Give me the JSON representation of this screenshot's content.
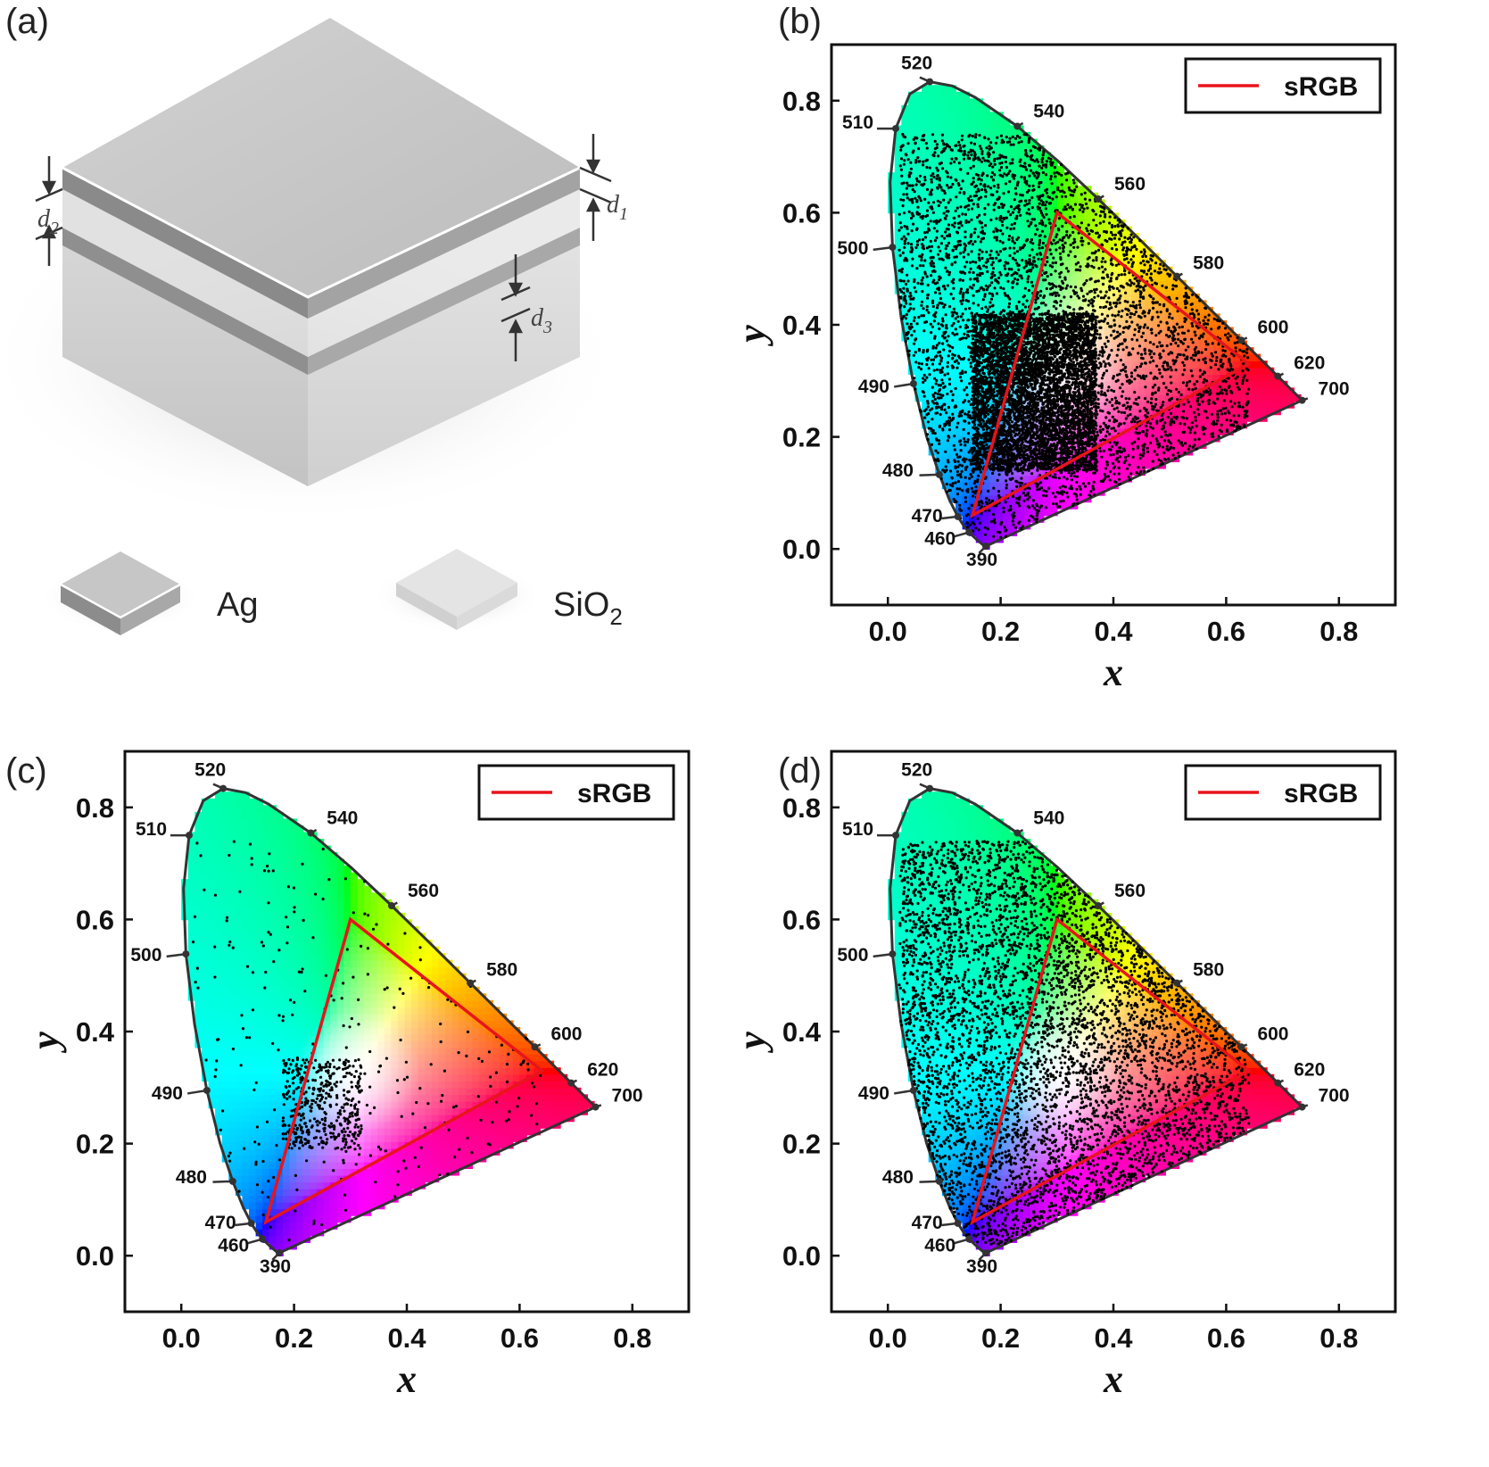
{
  "panels": {
    "a": {
      "label": "(a)"
    },
    "b": {
      "label": "(b)"
    },
    "c": {
      "label": "(c)"
    },
    "d": {
      "label": "(d)"
    }
  },
  "schematic": {
    "d1": "d",
    "d1_sub": "1",
    "d2": "d",
    "d2_sub": "2",
    "d3": "d",
    "d3_sub": "3",
    "legend_ag": "Ag",
    "legend_sio2": "SiO",
    "legend_sio2_sub": "2",
    "colors": {
      "ag_top": "#c8c8c8",
      "ag_edge": "#9a9a9a",
      "sio2_top": "#e6e6e6",
      "sio2_side": "#d9d9d9"
    }
  },
  "chart_data": [
    {
      "panel": "b",
      "type": "scatter",
      "xlabel": "x",
      "ylabel": "y",
      "xlim": [
        -0.1,
        0.9
      ],
      "ylim": [
        -0.1,
        0.9
      ],
      "xticks": [
        "0.0",
        "0.2",
        "0.4",
        "0.6",
        "0.8"
      ],
      "yticks": [
        "0.0",
        "0.2",
        "0.4",
        "0.6",
        "0.8"
      ],
      "legend": {
        "label": "sRGB",
        "color": "#e8141c",
        "position": "top-right"
      },
      "density": "very-high",
      "wavelength_labels": [
        "390",
        "460",
        "470",
        "480",
        "490",
        "500",
        "510",
        "520",
        "540",
        "560",
        "580",
        "600",
        "620",
        "700"
      ],
      "srgb_triangle": [
        [
          0.64,
          0.33
        ],
        [
          0.3,
          0.6
        ],
        [
          0.15,
          0.06
        ]
      ]
    },
    {
      "panel": "c",
      "type": "scatter",
      "xlabel": "x",
      "ylabel": "y",
      "xlim": [
        -0.1,
        0.9
      ],
      "ylim": [
        -0.1,
        0.9
      ],
      "xticks": [
        "0.0",
        "0.2",
        "0.4",
        "0.6",
        "0.8"
      ],
      "yticks": [
        "0.0",
        "0.2",
        "0.4",
        "0.6",
        "0.8"
      ],
      "legend": {
        "label": "sRGB",
        "color": "#e8141c",
        "position": "top-right"
      },
      "density": "low",
      "wavelength_labels": [
        "390",
        "460",
        "470",
        "480",
        "490",
        "500",
        "510",
        "520",
        "540",
        "560",
        "580",
        "600",
        "620",
        "700"
      ],
      "srgb_triangle": [
        [
          0.64,
          0.33
        ],
        [
          0.3,
          0.6
        ],
        [
          0.15,
          0.06
        ]
      ]
    },
    {
      "panel": "d",
      "type": "scatter",
      "xlabel": "x",
      "ylabel": "y",
      "xlim": [
        -0.1,
        0.9
      ],
      "ylim": [
        -0.1,
        0.9
      ],
      "xticks": [
        "0.0",
        "0.2",
        "0.4",
        "0.6",
        "0.8"
      ],
      "yticks": [
        "0.0",
        "0.2",
        "0.4",
        "0.6",
        "0.8"
      ],
      "legend": {
        "label": "sRGB",
        "color": "#e8141c",
        "position": "top-right"
      },
      "density": "medium",
      "wavelength_labels": [
        "390",
        "460",
        "470",
        "480",
        "490",
        "500",
        "510",
        "520",
        "540",
        "560",
        "580",
        "600",
        "620",
        "700"
      ],
      "srgb_triangle": [
        [
          0.64,
          0.33
        ],
        [
          0.3,
          0.6
        ],
        [
          0.15,
          0.06
        ]
      ]
    }
  ]
}
